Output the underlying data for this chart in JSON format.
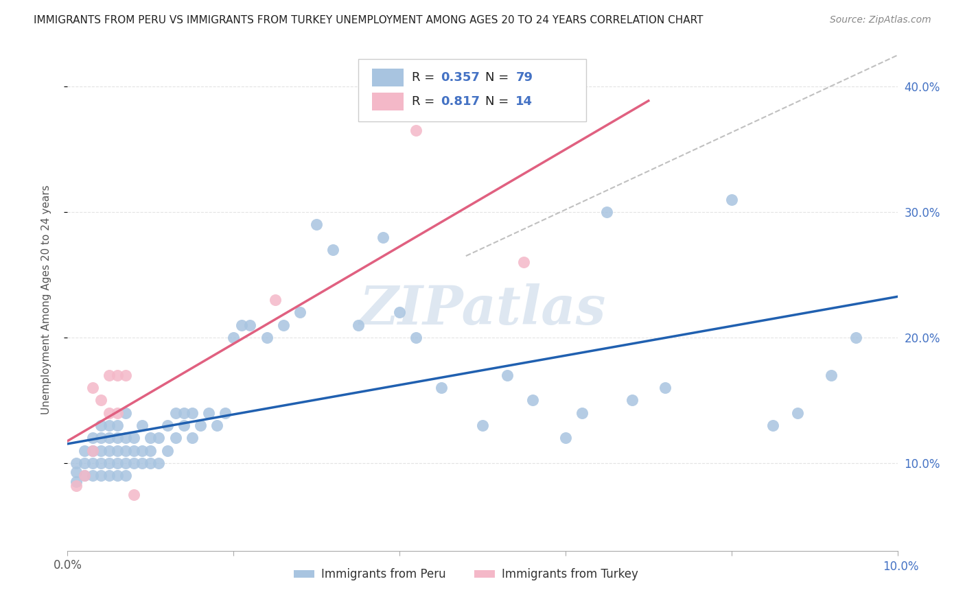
{
  "title": "IMMIGRANTS FROM PERU VS IMMIGRANTS FROM TURKEY UNEMPLOYMENT AMONG AGES 20 TO 24 YEARS CORRELATION CHART",
  "source": "Source: ZipAtlas.com",
  "ylabel": "Unemployment Among Ages 20 to 24 years",
  "xlim": [
    0.0,
    0.1
  ],
  "ylim": [
    0.03,
    0.43
  ],
  "xticks": [
    0.0,
    0.02,
    0.04,
    0.06,
    0.08,
    0.1
  ],
  "yticks": [
    0.1,
    0.2,
    0.3,
    0.4
  ],
  "xticklabels": [
    "0.0%",
    "",
    "",
    "",
    "",
    ""
  ],
  "yticklabels": [
    "10.0%",
    "20.0%",
    "30.0%",
    "40.0%"
  ],
  "peru_R": "0.357",
  "peru_N": "79",
  "turkey_R": "0.817",
  "turkey_N": "14",
  "peru_color": "#a8c4e0",
  "turkey_color": "#f4b8c8",
  "peru_line_color": "#2060b0",
  "turkey_line_color": "#e06080",
  "diag_line_color": "#c0c0c0",
  "legend_label_peru": "Immigrants from Peru",
  "legend_label_turkey": "Immigrants from Turkey",
  "watermark_color": "#c8d8e8",
  "peru_scatter_x": [
    0.001,
    0.001,
    0.001,
    0.002,
    0.002,
    0.002,
    0.003,
    0.003,
    0.003,
    0.003,
    0.004,
    0.004,
    0.004,
    0.004,
    0.004,
    0.005,
    0.005,
    0.005,
    0.005,
    0.005,
    0.006,
    0.006,
    0.006,
    0.006,
    0.006,
    0.007,
    0.007,
    0.007,
    0.007,
    0.007,
    0.008,
    0.008,
    0.008,
    0.009,
    0.009,
    0.009,
    0.01,
    0.01,
    0.01,
    0.011,
    0.011,
    0.012,
    0.012,
    0.013,
    0.013,
    0.014,
    0.014,
    0.015,
    0.015,
    0.016,
    0.017,
    0.018,
    0.019,
    0.02,
    0.021,
    0.022,
    0.024,
    0.026,
    0.028,
    0.03,
    0.032,
    0.035,
    0.038,
    0.04,
    0.042,
    0.045,
    0.05,
    0.053,
    0.056,
    0.06,
    0.062,
    0.065,
    0.068,
    0.072,
    0.08,
    0.085,
    0.088,
    0.092,
    0.095
  ],
  "peru_scatter_y": [
    0.085,
    0.093,
    0.1,
    0.09,
    0.1,
    0.11,
    0.09,
    0.1,
    0.11,
    0.12,
    0.09,
    0.1,
    0.11,
    0.12,
    0.13,
    0.09,
    0.1,
    0.11,
    0.12,
    0.13,
    0.09,
    0.1,
    0.11,
    0.12,
    0.13,
    0.09,
    0.1,
    0.11,
    0.12,
    0.14,
    0.1,
    0.11,
    0.12,
    0.1,
    0.11,
    0.13,
    0.1,
    0.11,
    0.12,
    0.1,
    0.12,
    0.11,
    0.13,
    0.12,
    0.14,
    0.13,
    0.14,
    0.12,
    0.14,
    0.13,
    0.14,
    0.13,
    0.14,
    0.2,
    0.21,
    0.21,
    0.2,
    0.21,
    0.22,
    0.29,
    0.27,
    0.21,
    0.28,
    0.22,
    0.2,
    0.16,
    0.13,
    0.17,
    0.15,
    0.12,
    0.14,
    0.3,
    0.15,
    0.16,
    0.31,
    0.13,
    0.14,
    0.17,
    0.2
  ],
  "turkey_scatter_x": [
    0.001,
    0.002,
    0.003,
    0.003,
    0.004,
    0.005,
    0.005,
    0.006,
    0.006,
    0.007,
    0.008,
    0.025,
    0.042,
    0.055
  ],
  "turkey_scatter_y": [
    0.082,
    0.09,
    0.11,
    0.16,
    0.15,
    0.14,
    0.17,
    0.14,
    0.17,
    0.17,
    0.075,
    0.23,
    0.365,
    0.26
  ],
  "bg_color": "#ffffff",
  "grid_color": "#e0e0e0",
  "right_ytick_color": "#4472c4",
  "right_xtick_color": "#4472c4"
}
